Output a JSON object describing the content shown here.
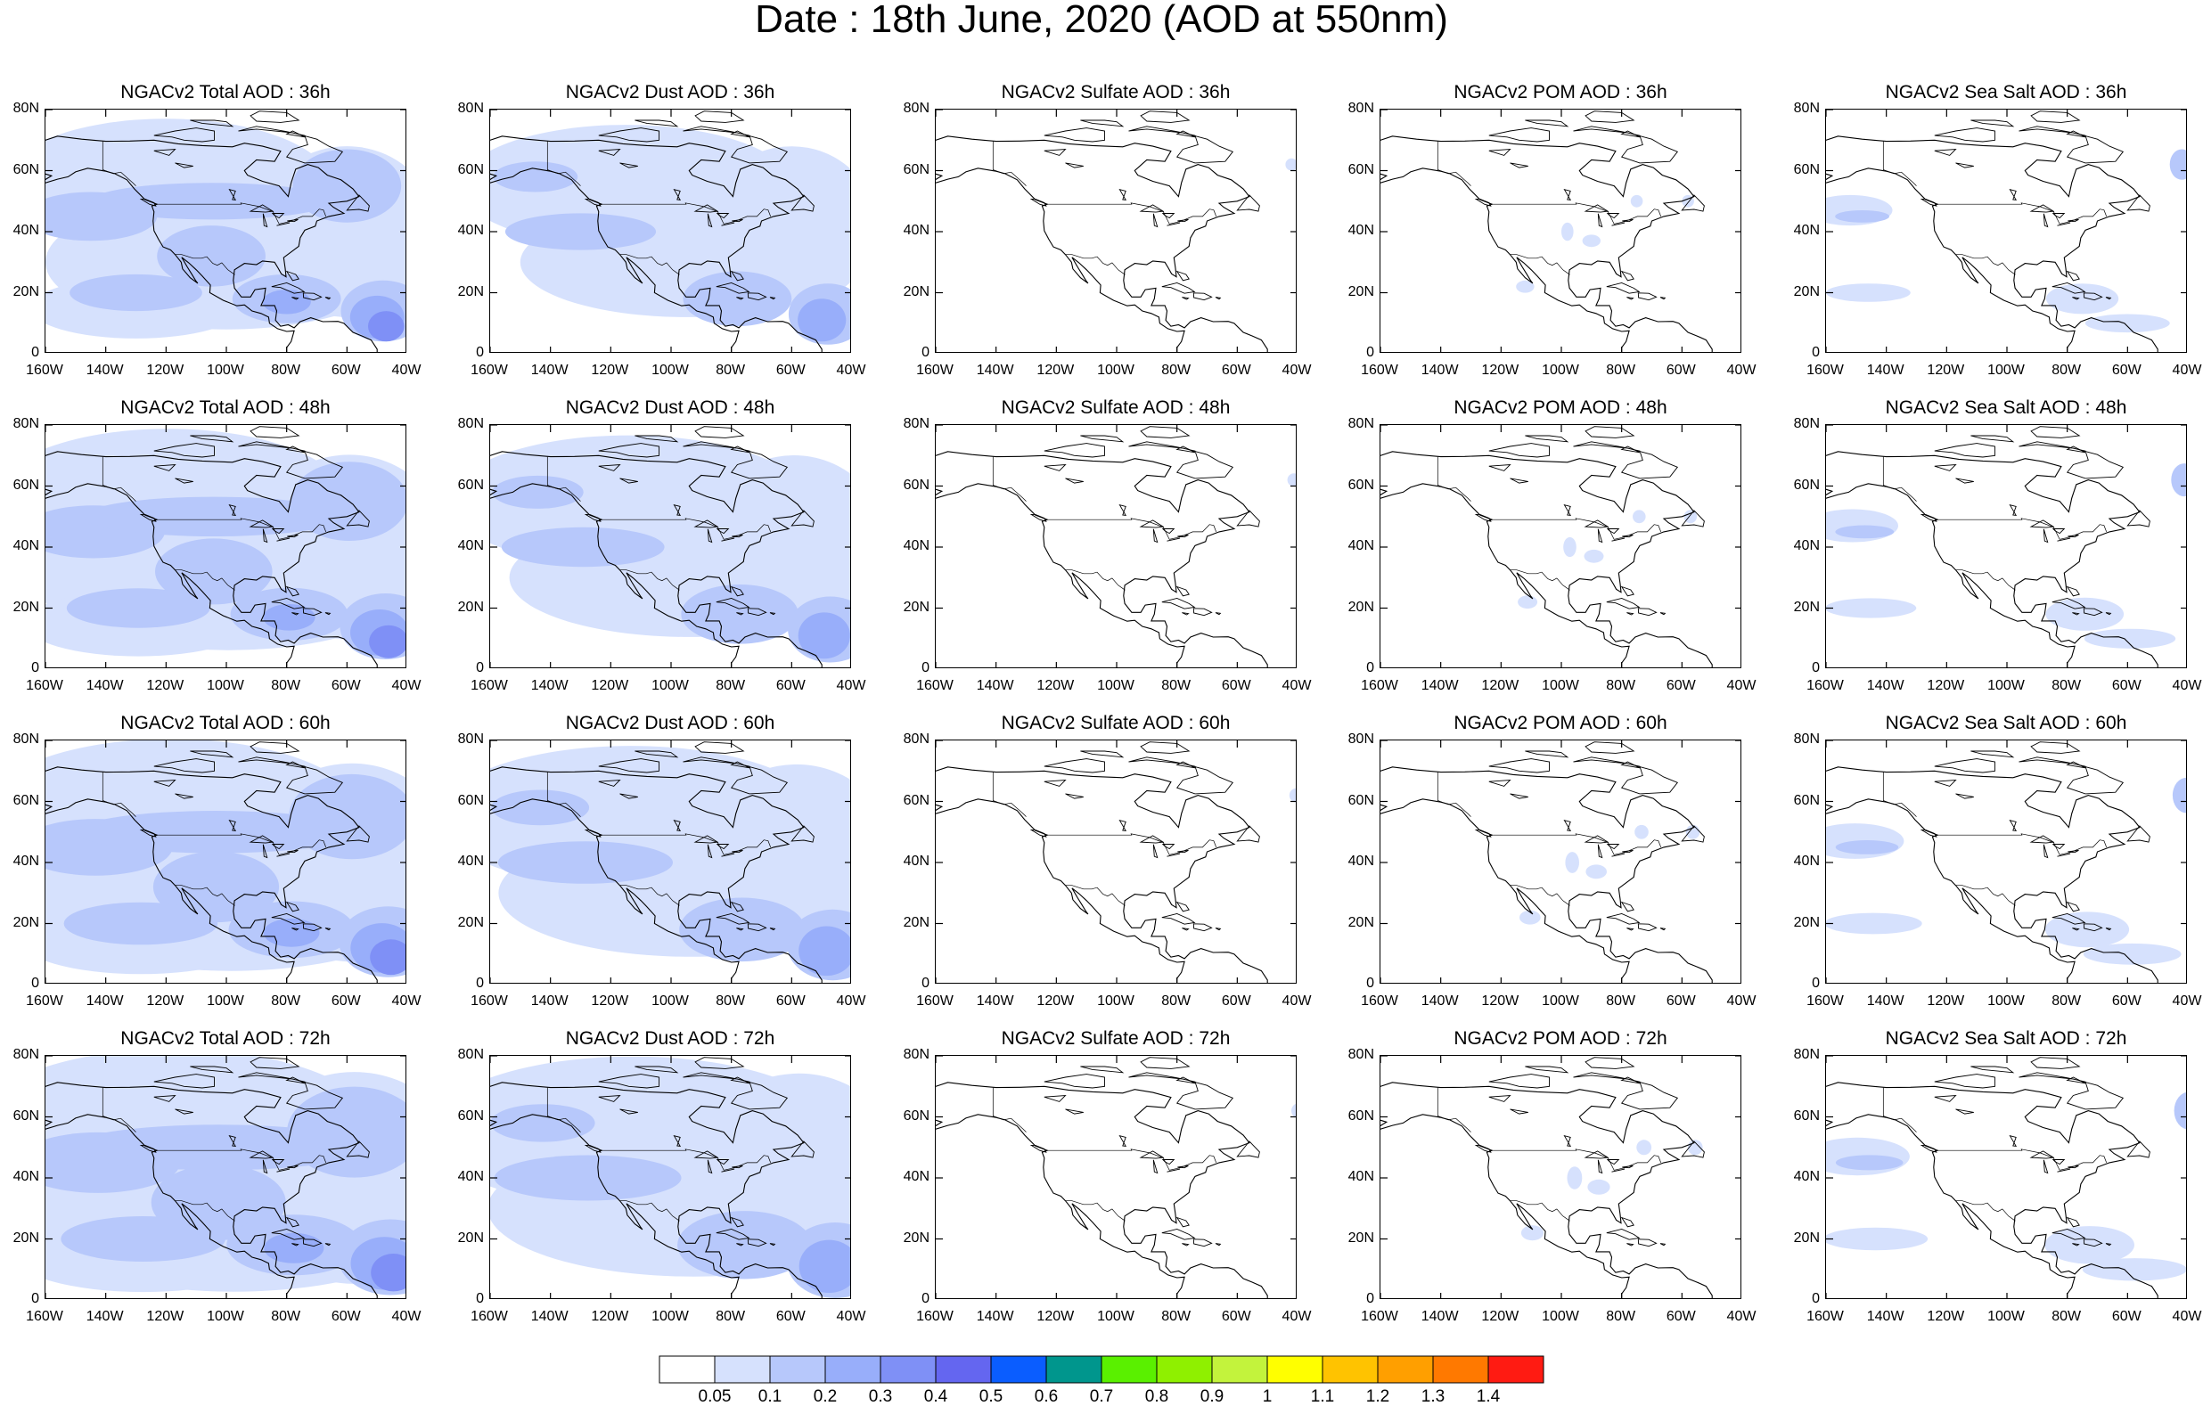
{
  "title": "Date : 18th June, 2020 (AOD at 550nm)",
  "map": {
    "lon_range": [
      -160,
      -40
    ],
    "lat_range": [
      0,
      80
    ],
    "lon_ticks": [
      "160W",
      "140W",
      "120W",
      "100W",
      "80W",
      "60W",
      "40W"
    ],
    "lat_ticks": [
      "80N",
      "60N",
      "40N",
      "20N",
      "0"
    ],
    "land_outline_color": "#000000"
  },
  "rows": [
    "36h",
    "48h",
    "60h",
    "72h"
  ],
  "species": [
    "Total",
    "Dust",
    "Sulfate",
    "POM",
    "Sea Salt"
  ],
  "panel_titles": [
    [
      "NGACv2 Total AOD : 36h",
      "NGACv2 Dust AOD : 36h",
      "NGACv2 Sulfate AOD : 36h",
      "NGACv2 POM AOD : 36h",
      "NGACv2 Sea Salt AOD : 36h"
    ],
    [
      "NGACv2 Total AOD : 48h",
      "NGACv2 Dust AOD : 48h",
      "NGACv2 Sulfate AOD : 48h",
      "NGACv2 POM AOD : 48h",
      "NGACv2 Sea Salt AOD : 48h"
    ],
    [
      "NGACv2 Total AOD : 60h",
      "NGACv2 Dust AOD : 60h",
      "NGACv2 Sulfate AOD : 60h",
      "NGACv2 POM AOD : 60h",
      "NGACv2 Sea Salt AOD : 60h"
    ],
    [
      "NGACv2 Total AOD : 72h",
      "NGACv2 Dust AOD : 72h",
      "NGACv2 Sulfate AOD : 72h",
      "NGACv2 POM AOD : 72h",
      "NGACv2 Sea Salt  AOD : 72h"
    ]
  ],
  "colorbar": {
    "levels": [
      "0.05",
      "0.1",
      "0.2",
      "0.3",
      "0.4",
      "0.5",
      "0.6",
      "0.7",
      "0.8",
      "0.9",
      "1",
      "1.1",
      "1.2",
      "1.3",
      "1.4"
    ],
    "colors": [
      "#ffffff",
      "#d6e1fd",
      "#b7c8fb",
      "#98aefa",
      "#7f90f6",
      "#6466f0",
      "#0a5dff",
      "#00968d",
      "#5af000",
      "#8ff000",
      "#c3f33c",
      "#ffff00",
      "#ffc300",
      "#ff9f00",
      "#ff7900",
      "#ff1b12"
    ]
  },
  "shading_colors": {
    "level1": "#d6e1fd",
    "level2": "#b7c8fb",
    "level3": "#98aefa",
    "level4": "#7f90f6"
  }
}
